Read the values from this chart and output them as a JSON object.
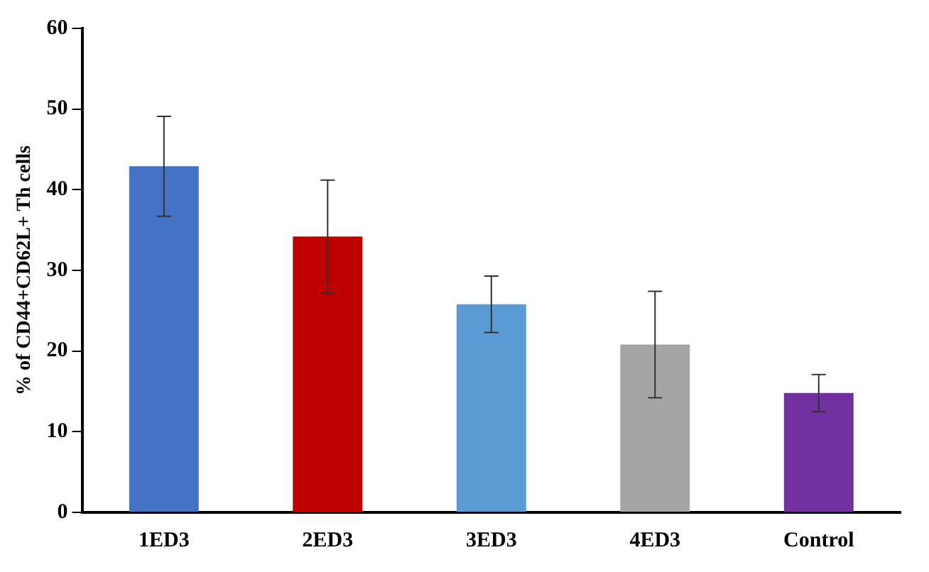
{
  "chart_data": {
    "type": "bar",
    "ylabel": "% of CD44+CD62L+ Th cells",
    "categories": [
      "1ED3",
      "2ED3",
      "3ED3",
      "4ED3",
      "Control"
    ],
    "values": [
      42.9,
      34.2,
      25.8,
      20.8,
      14.8
    ],
    "colors": [
      "#4472c4",
      "#c00000",
      "#5b9bd5",
      "#a5a5a5",
      "#7030a0"
    ],
    "errors": [
      6.2,
      7,
      3.5,
      6.6,
      2.3
    ],
    "ylim": [
      0,
      60
    ],
    "yticks": [
      0,
      10,
      20,
      30,
      40,
      50,
      60
    ],
    "grid": false,
    "legend": false
  }
}
